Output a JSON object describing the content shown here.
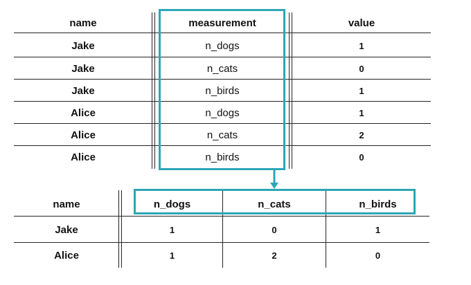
{
  "long_table": {
    "headers": [
      "name",
      "measurement",
      "value"
    ],
    "rows": [
      [
        "Jake",
        "n_dogs",
        "1"
      ],
      [
        "Jake",
        "n_cats",
        "0"
      ],
      [
        "Jake",
        "n_birds",
        "1"
      ],
      [
        "Alice",
        "n_dogs",
        "1"
      ],
      [
        "Alice",
        "n_cats",
        "2"
      ],
      [
        "Alice",
        "n_birds",
        "0"
      ]
    ]
  },
  "wide_table": {
    "headers": [
      "name",
      "n_dogs",
      "n_cats",
      "n_birds"
    ],
    "rows": [
      [
        "Jake",
        "1",
        "0",
        "1"
      ],
      [
        "Alice",
        "1",
        "2",
        "0"
      ]
    ]
  },
  "colors": {
    "highlight": "#2ba6b6",
    "rule": "#222222"
  }
}
